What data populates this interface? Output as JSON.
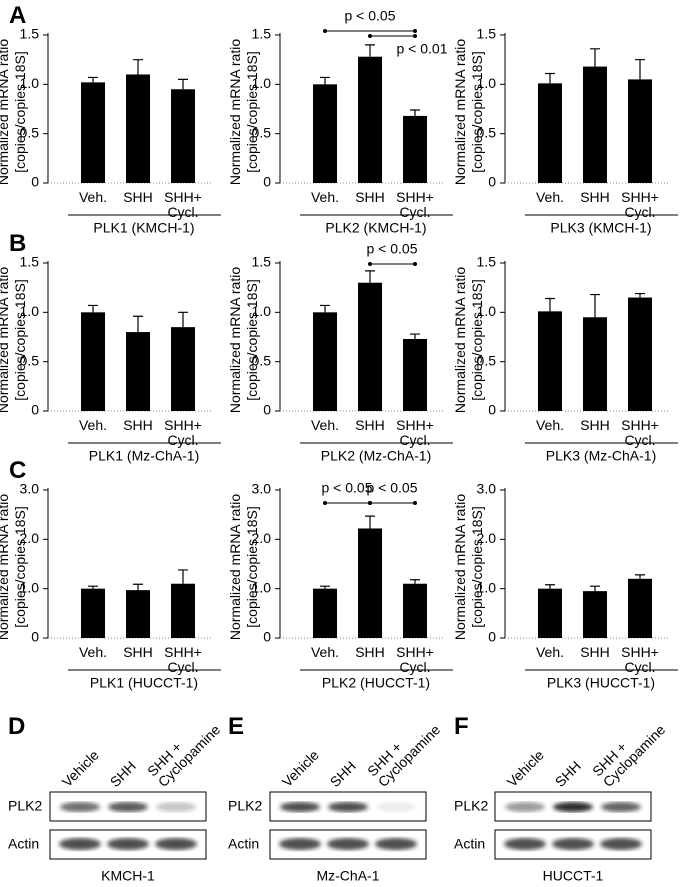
{
  "chart_data": [
    {
      "type": "bar",
      "ylabel": "Normalized mRNA ratio\n[copies/copies 18S]",
      "xlabel": "PLK1 (KMCH-1)",
      "categories": [
        "Veh.",
        "SHH",
        "SHH+\nCycl."
      ],
      "values": [
        1.02,
        1.1,
        0.95
      ],
      "errors": [
        0.05,
        0.15,
        0.1
      ],
      "color": "#000000",
      "ylim": [
        0,
        1.5
      ],
      "yticks": [
        0,
        0.5,
        {
          "value": 1,
          "label": "1.0"
        },
        1.5
      ]
    },
    {
      "type": "bar",
      "ylabel": "Normalized mRNA ratio\n[copies/copies 18S]",
      "xlabel": "PLK2 (KMCH-1)",
      "categories": [
        "Veh.",
        "SHH",
        "SHH+\nCycl."
      ],
      "values": [
        1.0,
        1.28,
        0.68
      ],
      "errors": [
        0.07,
        0.12,
        0.06
      ],
      "color": "#000000",
      "ylim": [
        0,
        1.5
      ],
      "yticks": [
        0,
        0.5,
        {
          "value": 1,
          "label": "1.0"
        },
        1.5
      ],
      "annotations": [
        "p < 0.05",
        "p < 0.01"
      ]
    },
    {
      "type": "bar",
      "ylabel": "Normalized mRNA ratio\n[copies/copies 18S]",
      "xlabel": "PLK3 (KMCH-1)",
      "categories": [
        "Veh.",
        "SHH",
        "SHH+\nCycl."
      ],
      "values": [
        1.01,
        1.18,
        1.05
      ],
      "errors": [
        0.1,
        0.18,
        0.2
      ],
      "color": "#000000",
      "ylim": [
        0,
        1.5
      ],
      "yticks": [
        0,
        0.5,
        {
          "value": 1,
          "label": "1.0"
        },
        1.5
      ]
    },
    {
      "type": "bar",
      "ylabel": "Normalized mRNA ratio\n[copies/copies 18S]",
      "xlabel": "PLK1 (Mz-ChA-1)",
      "categories": [
        "Veh.",
        "SHH",
        "SHH+\nCycl."
      ],
      "values": [
        1.0,
        0.8,
        0.85
      ],
      "errors": [
        0.07,
        0.16,
        0.15
      ],
      "color": "#000000",
      "ylim": [
        0,
        1.5
      ],
      "yticks": [
        0,
        0.5,
        {
          "value": 1,
          "label": "1.0"
        },
        1.5
      ]
    },
    {
      "type": "bar",
      "ylabel": "Normalized mRNA ratio\n[copies/copies 18S]",
      "xlabel": "PLK2 (Mz-ChA-1)",
      "categories": [
        "Veh.",
        "SHH",
        "SHH+\nCycl."
      ],
      "values": [
        1.0,
        1.3,
        0.73
      ],
      "errors": [
        0.07,
        0.12,
        0.05
      ],
      "color": "#000000",
      "ylim": [
        0,
        1.5
      ],
      "yticks": [
        0,
        0.5,
        {
          "value": 1,
          "label": "1.0"
        },
        1.5
      ],
      "annotations": [
        "p < 0.05"
      ]
    },
    {
      "type": "bar",
      "ylabel": "Normalized mRNA ratio\n[copies/copies 18S]",
      "xlabel": "PLK3 (Mz-ChA-1)",
      "categories": [
        "Veh.",
        "SHH",
        "SHH+\nCycl."
      ],
      "values": [
        1.01,
        0.95,
        1.15
      ],
      "errors": [
        0.13,
        0.23,
        0.04
      ],
      "color": "#000000",
      "ylim": [
        0,
        1.5
      ],
      "yticks": [
        0,
        0.5,
        {
          "value": 1,
          "label": "1.0"
        },
        1.5
      ]
    },
    {
      "type": "bar",
      "ylabel": "Normalized mRNA ratio\n[copies/copies 18S]",
      "xlabel": "PLK1 (HUCCT-1)",
      "categories": [
        "Veh.",
        "SHH",
        "SHH+\nCycl."
      ],
      "values": [
        1.0,
        0.97,
        1.1
      ],
      "errors": [
        0.05,
        0.12,
        0.28
      ],
      "color": "#000000",
      "ylim": [
        0,
        3
      ],
      "yticks": [
        0,
        {
          "value": 1,
          "label": "1.0"
        },
        {
          "value": 2,
          "label": "2.0"
        },
        {
          "value": 3,
          "label": "3.0"
        }
      ]
    },
    {
      "type": "bar",
      "ylabel": "Normalized mRNA ratio\n[copies/copies 18S]",
      "xlabel": "PLK2 (HUCCT-1)",
      "categories": [
        "Veh.",
        "SHH",
        "SHH+\nCycl."
      ],
      "values": [
        1.0,
        2.22,
        1.1
      ],
      "errors": [
        0.05,
        0.25,
        0.08
      ],
      "color": "#000000",
      "ylim": [
        0,
        3
      ],
      "yticks": [
        0,
        {
          "value": 1,
          "label": "1.0"
        },
        {
          "value": 2,
          "label": "2.0"
        },
        {
          "value": 3,
          "label": "3.0"
        }
      ],
      "annotations": [
        "p < 0.05",
        "p < 0.05"
      ]
    },
    {
      "type": "bar",
      "ylabel": "Normalized mRNA ratio\n[copies/copies 18S]",
      "xlabel": "PLK3 (HUCCT-1)",
      "categories": [
        "Veh.",
        "SHH",
        "SHH+\nCycl."
      ],
      "values": [
        1.0,
        0.95,
        1.2
      ],
      "errors": [
        0.08,
        0.1,
        0.08
      ],
      "color": "#000000",
      "ylim": [
        0,
        3
      ],
      "yticks": [
        0,
        {
          "value": 1,
          "label": "1.0"
        },
        {
          "value": 2,
          "label": "2.0"
        },
        {
          "value": 3,
          "label": "3.0"
        }
      ]
    }
  ],
  "panel_letters": [
    "A",
    "B",
    "C"
  ],
  "blots": [
    {
      "letter": "D",
      "lanes": [
        "Vehicle",
        "SHH",
        "SHH +\nCyclopamine"
      ],
      "rows": [
        "PLK2",
        "Actin"
      ],
      "cell_line": "KMCH-1"
    },
    {
      "letter": "E",
      "lanes": [
        "Vehicle",
        "SHH",
        "SHH +\nCyclopamine"
      ],
      "rows": [
        "PLK2",
        "Actin"
      ],
      "cell_line": "Mz-ChA-1"
    },
    {
      "letter": "F",
      "lanes": [
        "Vehicle",
        "SHH",
        "SHH +\nCyclopamine"
      ],
      "rows": [
        "PLK2",
        "Actin"
      ],
      "cell_line": "HUCCT-1"
    }
  ]
}
